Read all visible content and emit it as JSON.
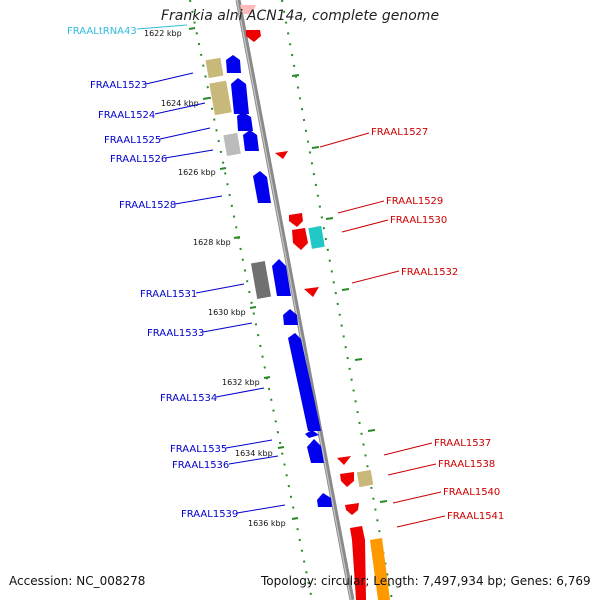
{
  "title": "Frankia alni ACN14a, complete genome",
  "accession_label": "Accession: NC_008278",
  "topology_label": "Topology: circular; Length: 7,497,934 bp; Genes: 6,769",
  "ruler_ticks": [
    "1622 kbp",
    "1624 kbp",
    "1626 kbp",
    "1628 kbp",
    "1630 kbp",
    "1632 kbp",
    "1634 kbp",
    "1636 kbp"
  ],
  "colors": {
    "backbone": "#8a8a8a",
    "tick_dash": "#2a8a2a",
    "label_left": "#0000cc",
    "label_right": "#cc0000",
    "label_trna": "#33bbdd",
    "gene_blue": "#0000ee",
    "gene_red": "#ee0000",
    "gene_tan": "#c8b87a",
    "gene_cyan": "#22c8c8",
    "gene_gray": "#bbbbbb",
    "gene_darkgray": "#707070",
    "gene_orange": "#ff9900"
  },
  "gene_labels_left": [
    "FRAALtRNA43",
    "FRAAL1523",
    "FRAAL1524",
    "FRAAL1525",
    "FRAAL1526",
    "FRAAL1528",
    "FRAAL1531",
    "FRAAL1533",
    "FRAAL1534",
    "FRAAL1535",
    "FRAAL1536",
    "FRAAL1539"
  ],
  "gene_labels_right": [
    "FRAAL1527",
    "FRAAL1529",
    "FRAAL1530",
    "FRAAL1532",
    "FRAAL1537",
    "FRAAL1538",
    "FRAAL1540",
    "FRAAL1541"
  ]
}
